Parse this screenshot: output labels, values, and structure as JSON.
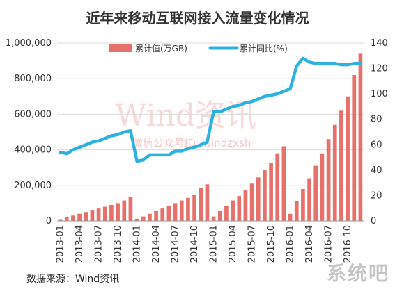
{
  "title": "近年来移动互联网接入流量变化情况",
  "source_label": "数据来源：Wind资讯",
  "watermark": {
    "main": "Wind资讯",
    "sub": "微信公众号ID: windzxsh"
  },
  "corner_mark": "系统吧",
  "colors": {
    "bar": "#E8706A",
    "line": "#2DB2E0",
    "axis_text": "#333333",
    "grid": "#DDDDDD"
  },
  "chart_data": {
    "type": "bar+line",
    "title": "近年来移动互联网接入流量变化情况",
    "legend_position": "top",
    "grid": true,
    "categories": [
      "2013-01",
      "2013-02",
      "2013-03",
      "2013-04",
      "2013-05",
      "2013-06",
      "2013-07",
      "2013-08",
      "2013-09",
      "2013-10",
      "2013-11",
      "2013-12",
      "2014-01",
      "2014-02",
      "2014-03",
      "2014-04",
      "2014-05",
      "2014-06",
      "2014-07",
      "2014-08",
      "2014-09",
      "2014-10",
      "2014-11",
      "2014-12",
      "2015-01",
      "2015-02",
      "2015-03",
      "2015-04",
      "2015-05",
      "2015-06",
      "2015-07",
      "2015-08",
      "2015-09",
      "2015-10",
      "2015-11",
      "2015-12",
      "2016-01",
      "2016-02",
      "2016-03",
      "2016-04",
      "2016-05",
      "2016-06",
      "2016-07",
      "2016-08",
      "2016-09",
      "2016-10",
      "2016-11",
      "2016-12"
    ],
    "x_tick_labels": [
      "2013-01",
      "2013-04",
      "2013-07",
      "2013-10",
      "2014-01",
      "2014-04",
      "2014-07",
      "2014-10",
      "2015-01",
      "2015-04",
      "2015-07",
      "2015-10",
      "2016-01",
      "2016-04",
      "2016-07",
      "2016-10"
    ],
    "left_axis": {
      "ylim": [
        0,
        1000000
      ],
      "ticks": [
        "0",
        "200,000",
        "400,000",
        "600,000",
        "800,000",
        "1,000,000"
      ]
    },
    "right_axis": {
      "ylim": [
        0,
        140
      ],
      "ticks": [
        "0",
        "20",
        "40",
        "60",
        "80",
        "100",
        "120",
        "140"
      ]
    },
    "series": [
      {
        "name": "累计值(万GB)",
        "type": "bar",
        "axis": "left",
        "values": [
          10000,
          20000,
          30000,
          40000,
          50000,
          60000,
          70000,
          80000,
          90000,
          100000,
          115000,
          135000,
          12000,
          25000,
          40000,
          55000,
          70000,
          85000,
          100000,
          115000,
          130000,
          148000,
          185000,
          206000,
          25000,
          55000,
          85000,
          115000,
          140000,
          175000,
          210000,
          245000,
          285000,
          325000,
          380000,
          420000,
          40000,
          110000,
          180000,
          240000,
          310000,
          380000,
          460000,
          540000,
          620000,
          700000,
          820000,
          940000
        ]
      },
      {
        "name": "累计同比(%)",
        "type": "line",
        "axis": "right",
        "values": [
          54,
          53,
          56,
          58,
          60,
          62,
          63,
          65,
          67,
          68,
          70,
          71,
          47,
          48,
          52,
          52,
          52,
          52,
          55,
          55,
          57,
          58,
          60,
          62,
          86,
          86,
          88,
          90,
          91,
          93,
          94,
          96,
          98,
          99,
          100,
          102,
          104,
          122,
          128,
          125,
          124,
          124,
          124,
          124,
          123,
          123,
          124,
          124
        ]
      }
    ]
  }
}
